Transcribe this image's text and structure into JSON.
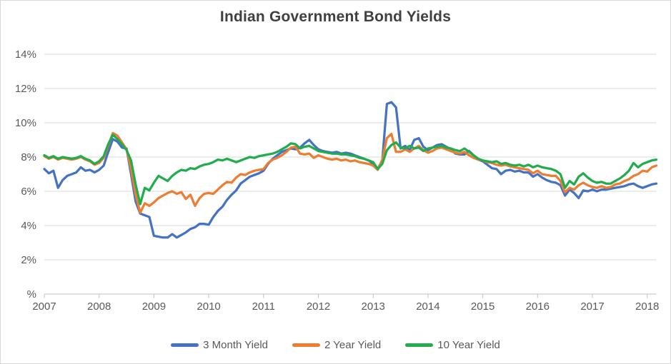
{
  "chart_data": {
    "type": "line",
    "title": "Indian Government Bond Yields",
    "xlabel": "",
    "ylabel": "",
    "x_start_year": 2007,
    "points_per_year": 12,
    "x_tick_labels": [
      "2007",
      "2008",
      "2009",
      "2010",
      "2011",
      "2012",
      "2013",
      "2014",
      "2015",
      "2016",
      "2017",
      "2018"
    ],
    "y_tick_labels": [
      "%",
      "2%",
      "4%",
      "6%",
      "8%",
      "10%",
      "12%",
      "14%"
    ],
    "ylim": [
      0,
      14
    ],
    "y_step": 2,
    "grid": true,
    "legend_position": "bottom",
    "colors": {
      "blue": "#4472C4",
      "orange": "#ED7D31",
      "green": "#21AC4D",
      "gridline": "#D9D9D9",
      "axis": "#BFBFBF",
      "tick_text": "#595959",
      "title_text": "#404040"
    },
    "series": [
      {
        "name": "3 Month Yield",
        "color": "#4472C4",
        "values": [
          7.3,
          7.05,
          7.2,
          6.2,
          6.65,
          6.9,
          7.0,
          7.1,
          7.4,
          7.2,
          7.25,
          7.1,
          7.25,
          7.5,
          8.3,
          9.05,
          8.9,
          8.55,
          8.5,
          7.0,
          5.4,
          4.7,
          4.6,
          4.5,
          3.4,
          3.35,
          3.3,
          3.3,
          3.5,
          3.3,
          3.45,
          3.6,
          3.8,
          3.9,
          4.1,
          4.1,
          4.05,
          4.5,
          4.85,
          5.1,
          5.5,
          5.8,
          6.05,
          6.45,
          6.65,
          6.85,
          6.95,
          7.05,
          7.2,
          7.6,
          7.9,
          8.1,
          8.3,
          8.4,
          8.5,
          8.45,
          8.55,
          8.8,
          9.0,
          8.7,
          8.45,
          8.35,
          8.3,
          8.25,
          8.3,
          8.2,
          8.25,
          8.2,
          8.1,
          8.0,
          7.9,
          7.8,
          7.6,
          7.3,
          7.8,
          11.1,
          11.2,
          10.9,
          8.5,
          8.65,
          8.4,
          9.0,
          9.1,
          8.6,
          8.4,
          8.55,
          8.7,
          8.75,
          8.6,
          8.45,
          8.2,
          8.15,
          8.15,
          8.35,
          8.1,
          7.85,
          7.75,
          7.55,
          7.35,
          7.3,
          7.0,
          7.2,
          7.25,
          7.15,
          7.2,
          7.1,
          7.1,
          6.85,
          7.0,
          6.8,
          6.65,
          6.55,
          6.5,
          6.35,
          5.75,
          6.1,
          5.9,
          5.6,
          6.05,
          6.0,
          6.1,
          6.0,
          6.1,
          6.1,
          6.15,
          6.2,
          6.25,
          6.3,
          6.4,
          6.45,
          6.3,
          6.2,
          6.3,
          6.4,
          6.45
        ]
      },
      {
        "name": "2 Year Yield",
        "color": "#ED7D31",
        "values": [
          8.05,
          7.9,
          8.0,
          7.85,
          7.95,
          7.9,
          7.85,
          7.9,
          8.0,
          7.85,
          7.75,
          7.55,
          7.65,
          7.95,
          8.65,
          9.4,
          9.25,
          8.85,
          8.45,
          7.3,
          5.8,
          4.75,
          5.3,
          5.15,
          5.35,
          5.6,
          5.75,
          5.9,
          6.0,
          5.85,
          5.95,
          5.55,
          5.8,
          5.15,
          5.6,
          5.85,
          5.9,
          5.85,
          6.1,
          6.35,
          6.55,
          6.5,
          6.8,
          7.0,
          6.95,
          7.1,
          7.2,
          7.25,
          7.3,
          7.65,
          7.85,
          7.95,
          8.1,
          8.3,
          8.55,
          8.6,
          8.2,
          8.15,
          8.2,
          7.95,
          8.1,
          8.0,
          7.9,
          7.85,
          7.9,
          7.8,
          7.85,
          7.75,
          7.8,
          7.7,
          7.65,
          7.6,
          7.5,
          7.25,
          7.85,
          9.1,
          9.35,
          8.3,
          8.3,
          8.45,
          8.3,
          8.5,
          8.65,
          8.4,
          8.25,
          8.35,
          8.5,
          8.55,
          8.45,
          8.35,
          8.25,
          8.2,
          8.3,
          8.1,
          7.95,
          7.85,
          7.8,
          7.7,
          7.65,
          7.55,
          7.5,
          7.55,
          7.45,
          7.4,
          7.35,
          7.3,
          7.25,
          7.05,
          7.2,
          7.0,
          6.95,
          6.9,
          6.9,
          6.6,
          5.95,
          6.2,
          6.1,
          6.35,
          6.5,
          6.35,
          6.25,
          6.2,
          6.3,
          6.2,
          6.25,
          6.4,
          6.45,
          6.6,
          6.7,
          6.9,
          7.0,
          7.2,
          7.15,
          7.4,
          7.5
        ]
      },
      {
        "name": "10 Year Yield",
        "color": "#21AC4D",
        "values": [
          8.1,
          7.95,
          8.05,
          7.9,
          8.0,
          7.95,
          7.9,
          7.95,
          8.05,
          7.9,
          7.8,
          7.6,
          7.75,
          8.05,
          8.75,
          9.3,
          9.05,
          8.75,
          8.4,
          7.8,
          6.4,
          5.25,
          6.2,
          6.05,
          6.5,
          6.9,
          6.75,
          6.6,
          6.9,
          7.1,
          7.25,
          7.2,
          7.35,
          7.3,
          7.45,
          7.55,
          7.6,
          7.7,
          7.85,
          7.8,
          7.9,
          7.8,
          7.7,
          7.8,
          7.9,
          8.0,
          7.95,
          8.05,
          8.1,
          8.15,
          8.2,
          8.3,
          8.45,
          8.6,
          8.8,
          8.75,
          8.5,
          8.6,
          8.65,
          8.5,
          8.35,
          8.3,
          8.25,
          8.2,
          8.2,
          8.15,
          8.15,
          8.1,
          8.05,
          7.95,
          7.9,
          7.8,
          7.7,
          7.3,
          7.6,
          8.4,
          8.7,
          8.85,
          8.55,
          8.5,
          8.65,
          8.5,
          8.55,
          8.35,
          8.5,
          8.55,
          8.6,
          8.65,
          8.55,
          8.5,
          8.4,
          8.35,
          8.5,
          8.3,
          8.1,
          7.9,
          7.8,
          7.75,
          7.7,
          7.75,
          7.6,
          7.65,
          7.55,
          7.5,
          7.55,
          7.45,
          7.55,
          7.4,
          7.5,
          7.4,
          7.35,
          7.3,
          7.2,
          7.0,
          6.2,
          6.6,
          6.4,
          6.85,
          7.05,
          6.8,
          6.6,
          6.5,
          6.55,
          6.45,
          6.45,
          6.6,
          6.75,
          6.95,
          7.2,
          7.65,
          7.4,
          7.6,
          7.7,
          7.8,
          7.85
        ]
      }
    ]
  }
}
